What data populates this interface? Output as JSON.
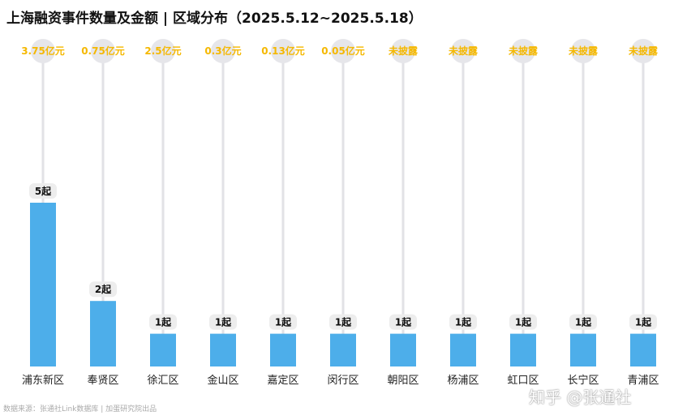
{
  "chart_data": {
    "type": "bar",
    "title": "上海融资事件数量及金额 | 区域分布（2025.5.12~2025.5.18）",
    "categories": [
      "浦东新区",
      "奉贤区",
      "徐汇区",
      "金山区",
      "嘉定区",
      "闵行区",
      "朝阳区",
      "杨浦区",
      "虹口区",
      "长宁区",
      "青浦区"
    ],
    "values": [
      5,
      2,
      1,
      1,
      1,
      1,
      1,
      1,
      1,
      1,
      1
    ],
    "value_labels": [
      "5起",
      "2起",
      "1起",
      "1起",
      "1起",
      "1起",
      "1起",
      "1起",
      "1起",
      "1起",
      "1起"
    ],
    "amounts": [
      "3.75亿元",
      "0.75亿元",
      "2.5亿元",
      "0.3亿元",
      "0.13亿元",
      "0.05亿元",
      "未披露",
      "未披露",
      "未披露",
      "未披露",
      "未披露"
    ],
    "xlabel": "",
    "ylabel": "",
    "ylim": [
      0,
      5
    ],
    "grid": false,
    "colors": {
      "bar": "#4DAEEA",
      "amount": "#F5B800",
      "circle": "#E6E6EA",
      "stem": "#E2E2E6",
      "label_bg": "#EDEDED"
    }
  },
  "footer": "数据来源：张通社Link数据库 | 加蛋研究院出品",
  "watermark": "知乎 @张通社"
}
